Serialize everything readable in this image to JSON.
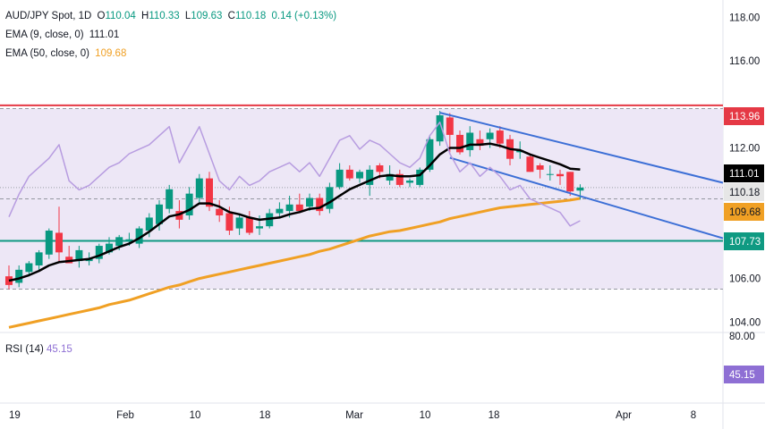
{
  "header": {
    "symbol": "AUD/JPY Spot, 1D",
    "o_label": "O",
    "o_value": "110.04",
    "h_label": "H",
    "h_value": "110.33",
    "l_label": "L",
    "l_value": "109.63",
    "c_label": "C",
    "c_value": "110.18",
    "change": "0.14 (+0.13%)",
    "ema9_label": "EMA (9, close, 0)",
    "ema9_value": "111.01",
    "ema50_label": "EMA (50, close, 0)",
    "ema50_value": "109.68",
    "rsi_label": "RSI (14)",
    "rsi_value": "45.15"
  },
  "colors": {
    "bull": "#089981",
    "bear": "#f23645",
    "ema9": "#000000",
    "ema50": "#f0a024",
    "resistance": "#e53945",
    "support": "#0f9a82",
    "channel": "#3c6fd6",
    "rsi": "#b79ce0",
    "rsi_band": "#ede7f6",
    "rsi_value_bg": "#8e6fd4"
  },
  "chart_data": {
    "type": "candlestick",
    "price_axis": {
      "ylim": [
        103.6,
        118.8
      ],
      "ticks": [
        "118.00",
        "116.00",
        "112.00",
        "106.00",
        "104.00"
      ]
    },
    "x_ticks": [
      "19",
      "Feb",
      "10",
      "18",
      "Mar",
      "10",
      "18",
      "Apr",
      "8"
    ],
    "candles": [
      {
        "o": 106.1,
        "h": 106.6,
        "l": 105.5,
        "c": 105.7
      },
      {
        "o": 105.8,
        "h": 106.6,
        "l": 105.6,
        "c": 106.4
      },
      {
        "o": 106.3,
        "h": 106.8,
        "l": 106.1,
        "c": 106.7
      },
      {
        "o": 106.6,
        "h": 107.3,
        "l": 106.4,
        "c": 107.2
      },
      {
        "o": 107.1,
        "h": 108.3,
        "l": 106.9,
        "c": 108.2
      },
      {
        "o": 108.1,
        "h": 109.3,
        "l": 106.7,
        "c": 107.2
      },
      {
        "o": 107.0,
        "h": 107.5,
        "l": 106.7,
        "c": 106.7
      },
      {
        "o": 106.8,
        "h": 107.5,
        "l": 106.5,
        "c": 107.3
      },
      {
        "o": 106.8,
        "h": 107.2,
        "l": 106.6,
        "c": 106.9
      },
      {
        "o": 106.9,
        "h": 107.6,
        "l": 106.7,
        "c": 107.5
      },
      {
        "o": 107.2,
        "h": 107.9,
        "l": 107.1,
        "c": 107.6
      },
      {
        "o": 107.5,
        "h": 108.0,
        "l": 107.3,
        "c": 107.9
      },
      {
        "o": 107.7,
        "h": 108.1,
        "l": 107.5,
        "c": 107.8
      },
      {
        "o": 107.6,
        "h": 108.4,
        "l": 107.4,
        "c": 108.3
      },
      {
        "o": 108.2,
        "h": 109.0,
        "l": 107.9,
        "c": 108.8
      },
      {
        "o": 108.5,
        "h": 109.6,
        "l": 108.2,
        "c": 109.4
      },
      {
        "o": 109.2,
        "h": 110.3,
        "l": 109.0,
        "c": 110.1
      },
      {
        "o": 109.1,
        "h": 109.6,
        "l": 108.3,
        "c": 108.7
      },
      {
        "o": 108.9,
        "h": 110.2,
        "l": 108.7,
        "c": 109.9
      },
      {
        "o": 109.7,
        "h": 110.8,
        "l": 109.5,
        "c": 110.6
      },
      {
        "o": 110.6,
        "h": 110.9,
        "l": 109.1,
        "c": 109.3
      },
      {
        "o": 109.2,
        "h": 109.6,
        "l": 108.6,
        "c": 108.9
      },
      {
        "o": 109.0,
        "h": 109.3,
        "l": 108.0,
        "c": 108.2
      },
      {
        "o": 108.3,
        "h": 109.0,
        "l": 108.0,
        "c": 108.8
      },
      {
        "o": 108.8,
        "h": 109.1,
        "l": 108.0,
        "c": 108.1
      },
      {
        "o": 108.3,
        "h": 108.9,
        "l": 108.0,
        "c": 108.4
      },
      {
        "o": 108.4,
        "h": 109.2,
        "l": 108.3,
        "c": 109.0
      },
      {
        "o": 109.0,
        "h": 109.5,
        "l": 108.8,
        "c": 109.2
      },
      {
        "o": 109.1,
        "h": 109.8,
        "l": 108.8,
        "c": 109.4
      },
      {
        "o": 109.4,
        "h": 109.9,
        "l": 109.0,
        "c": 109.1
      },
      {
        "o": 109.3,
        "h": 109.9,
        "l": 109.1,
        "c": 109.7
      },
      {
        "o": 109.7,
        "h": 109.9,
        "l": 108.9,
        "c": 109.1
      },
      {
        "o": 109.2,
        "h": 110.4,
        "l": 109.0,
        "c": 110.2
      },
      {
        "o": 110.2,
        "h": 111.3,
        "l": 110.1,
        "c": 111.0
      },
      {
        "o": 111.0,
        "h": 111.2,
        "l": 110.5,
        "c": 110.6
      },
      {
        "o": 110.6,
        "h": 111.0,
        "l": 110.4,
        "c": 110.9
      },
      {
        "o": 110.3,
        "h": 111.2,
        "l": 109.8,
        "c": 111.0
      },
      {
        "o": 111.2,
        "h": 111.3,
        "l": 110.6,
        "c": 110.9
      },
      {
        "o": 110.5,
        "h": 111.2,
        "l": 110.3,
        "c": 110.8
      },
      {
        "o": 110.8,
        "h": 111.0,
        "l": 110.2,
        "c": 110.3
      },
      {
        "o": 110.4,
        "h": 110.6,
        "l": 110.2,
        "c": 110.5
      },
      {
        "o": 110.3,
        "h": 111.1,
        "l": 110.2,
        "c": 111.0
      },
      {
        "o": 111.0,
        "h": 112.6,
        "l": 110.9,
        "c": 112.4
      },
      {
        "o": 112.3,
        "h": 113.7,
        "l": 112.1,
        "c": 113.5
      },
      {
        "o": 113.4,
        "h": 113.6,
        "l": 111.8,
        "c": 112.6
      },
      {
        "o": 112.6,
        "h": 112.8,
        "l": 111.7,
        "c": 111.8
      },
      {
        "o": 111.9,
        "h": 113.0,
        "l": 111.6,
        "c": 112.7
      },
      {
        "o": 112.4,
        "h": 112.8,
        "l": 111.9,
        "c": 112.1
      },
      {
        "o": 112.4,
        "h": 112.9,
        "l": 112.0,
        "c": 112.7
      },
      {
        "o": 112.8,
        "h": 113.0,
        "l": 112.0,
        "c": 112.2
      },
      {
        "o": 112.4,
        "h": 112.6,
        "l": 111.2,
        "c": 111.5
      },
      {
        "o": 111.8,
        "h": 112.3,
        "l": 111.5,
        "c": 111.9
      },
      {
        "o": 111.6,
        "h": 111.7,
        "l": 110.9,
        "c": 110.9
      },
      {
        "o": 111.2,
        "h": 111.3,
        "l": 110.6,
        "c": 111.0
      },
      {
        "o": 110.8,
        "h": 111.2,
        "l": 110.5,
        "c": 110.8
      },
      {
        "o": 110.8,
        "h": 111.0,
        "l": 110.3,
        "c": 110.7
      },
      {
        "o": 110.9,
        "h": 110.9,
        "l": 109.8,
        "c": 110.0
      },
      {
        "o": 110.04,
        "h": 110.33,
        "l": 109.63,
        "c": 110.18
      }
    ],
    "ema9": [
      105.9,
      106.0,
      106.15,
      106.35,
      106.6,
      106.75,
      106.8,
      106.85,
      106.9,
      107.05,
      107.25,
      107.45,
      107.6,
      107.85,
      108.15,
      108.5,
      108.85,
      108.95,
      109.15,
      109.45,
      109.45,
      109.3,
      109.05,
      108.95,
      108.8,
      108.7,
      108.75,
      108.8,
      108.95,
      109.05,
      109.2,
      109.25,
      109.5,
      109.8,
      110.1,
      110.3,
      110.5,
      110.7,
      110.75,
      110.7,
      110.7,
      110.75,
      111.2,
      111.7,
      112.0,
      112.0,
      112.15,
      112.15,
      112.2,
      112.1,
      111.95,
      111.9,
      111.7,
      111.55,
      111.4,
      111.25,
      111.05,
      111.01
    ],
    "ema50": [
      103.75,
      103.85,
      103.95,
      104.05,
      104.15,
      104.25,
      104.35,
      104.45,
      104.55,
      104.65,
      104.8,
      104.9,
      105.0,
      105.15,
      105.3,
      105.45,
      105.6,
      105.7,
      105.85,
      106.0,
      106.1,
      106.2,
      106.3,
      106.4,
      106.5,
      106.6,
      106.7,
      106.8,
      106.9,
      107.0,
      107.1,
      107.25,
      107.35,
      107.5,
      107.65,
      107.8,
      107.95,
      108.05,
      108.15,
      108.2,
      108.3,
      108.4,
      108.5,
      108.6,
      108.75,
      108.85,
      108.95,
      109.05,
      109.15,
      109.25,
      109.3,
      109.35,
      109.4,
      109.45,
      109.5,
      109.55,
      109.6,
      109.68
    ],
    "rsi": [
      46,
      51,
      55,
      57,
      59,
      62,
      54,
      52,
      53,
      55,
      57,
      58,
      60,
      61,
      62,
      64,
      66,
      58,
      62,
      66,
      60,
      54,
      52,
      55,
      53,
      54,
      56,
      57,
      58,
      56,
      58,
      55,
      59,
      63,
      64,
      61,
      63,
      62,
      60,
      58,
      57,
      59,
      64,
      67,
      60,
      56,
      58,
      55,
      57,
      55,
      52,
      53,
      50,
      49,
      48,
      47,
      44,
      45.15
    ],
    "levels": {
      "resistance": 113.96,
      "support": 107.73
    },
    "price_labels": [
      "113.96",
      "111.01",
      "110.18",
      "109.68",
      "107.73"
    ],
    "rsi_axis": {
      "tick": "80.00",
      "value_label": "45.15"
    }
  }
}
